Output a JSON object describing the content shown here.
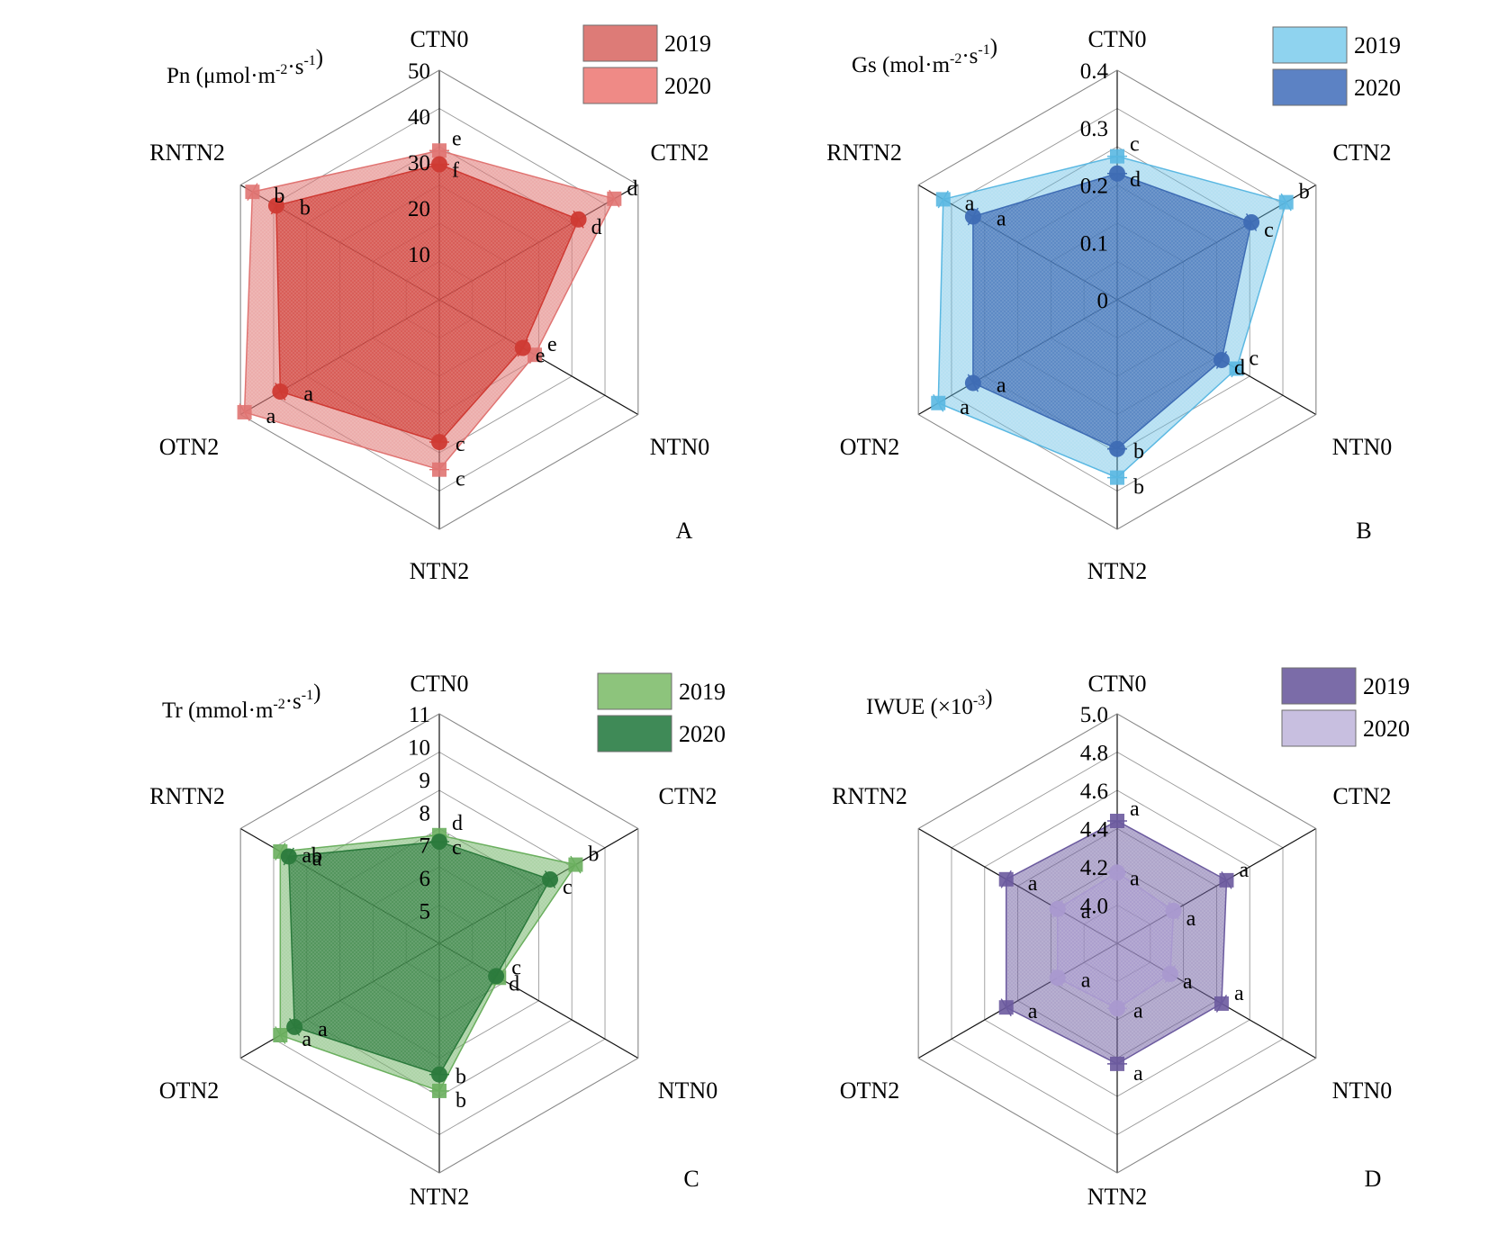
{
  "chart_data": [
    {
      "type": "radar",
      "panel_letter": "A",
      "ylabel_main": "Pn (μmol·m",
      "ylabel_sup1": "-2",
      "ylabel_mid": "·s",
      "ylabel_sup2": "-1",
      "ylabel_end": ")",
      "categories": [
        "CTN0",
        "CTN2",
        "NTN0",
        "NTN2",
        "OTN2",
        "RNTN2"
      ],
      "rlim": [
        0,
        50
      ],
      "ticks": [
        "10",
        "20",
        "30",
        "40",
        "50"
      ],
      "tick_values": [
        10,
        20,
        30,
        40,
        50
      ],
      "legend": [
        "2019",
        "2020"
      ],
      "series": [
        {
          "name": "2019",
          "values": [
            32.5,
            44,
            24,
            37,
            49,
            47
          ],
          "marker": "square",
          "color": "#e07472",
          "fill_opacity": 0.6,
          "labels": [
            "e",
            "d",
            "e",
            "c",
            "a",
            "b"
          ]
        },
        {
          "name": "2020",
          "values": [
            29.5,
            35,
            21,
            31,
            40,
            41
          ],
          "marker": "circle",
          "color": "#cf3a33",
          "fill_opacity": 0.7,
          "labels": [
            "f",
            "d",
            "e",
            "c",
            "a",
            "b"
          ]
        }
      ],
      "legend_colors": [
        "#dd7b77",
        "#ef8a86"
      ]
    },
    {
      "type": "radar",
      "panel_letter": "B",
      "ylabel_main": "Gs (mol·m",
      "ylabel_sup1": "-2",
      "ylabel_mid": "·s",
      "ylabel_sup2": "-1",
      "ylabel_end": ")",
      "categories": [
        "CTN0",
        "CTN2",
        "NTN0",
        "NTN2",
        "OTN2",
        "RNTN2"
      ],
      "rlim": [
        0,
        0.4
      ],
      "ticks": [
        "0",
        "0.1",
        "0.2",
        "0.3",
        "0.4"
      ],
      "tick_values": [
        0,
        0.1,
        0.2,
        0.3,
        0.4
      ],
      "legend": [
        "2019",
        "2020"
      ],
      "series": [
        {
          "name": "2019",
          "values": [
            0.25,
            0.34,
            0.24,
            0.31,
            0.36,
            0.35
          ],
          "marker": "square",
          "color": "#5ab8e2",
          "fill_opacity": 0.45,
          "labels": [
            "c",
            "b",
            "c",
            "b",
            "a",
            "a"
          ]
        },
        {
          "name": "2020",
          "values": [
            0.22,
            0.27,
            0.21,
            0.26,
            0.29,
            0.29
          ],
          "marker": "circle",
          "color": "#3e6cb4",
          "fill_opacity": 0.75,
          "labels": [
            "d",
            "c",
            "d",
            "b",
            "a",
            "a"
          ]
        }
      ],
      "legend_colors": [
        "#8fd3ef",
        "#5c82c4"
      ]
    },
    {
      "type": "radar",
      "panel_letter": "C",
      "ylabel_main": "Tr (mmol·m",
      "ylabel_sup1": "-2",
      "ylabel_mid": "·s",
      "ylabel_sup2": "-1",
      "ylabel_end": ")",
      "categories": [
        "CTN0",
        "CTN2",
        "NTN0",
        "NTN2",
        "OTN2",
        "RNTN2"
      ],
      "rlim": [
        4,
        11
      ],
      "ticks": [
        "5",
        "6",
        "7",
        "8",
        "9",
        "10",
        "11"
      ],
      "tick_values": [
        5,
        6,
        7,
        8,
        9,
        10,
        11
      ],
      "legend": [
        "2019",
        "2020"
      ],
      "series": [
        {
          "name": "2019",
          "values": [
            7.3,
            8.8,
            6.1,
            8.5,
            9.6,
            9.6
          ],
          "marker": "square",
          "color": "#6aaf5e",
          "fill_opacity": 0.55,
          "labels": [
            "d",
            "b",
            "c",
            "b",
            "a",
            "ab"
          ]
        },
        {
          "name": "2020",
          "values": [
            7.1,
            7.9,
            6.0,
            8.0,
            9.1,
            9.3
          ],
          "marker": "circle",
          "color": "#2b7a3c",
          "fill_opacity": 0.7,
          "labels": [
            "c",
            "c",
            "d",
            "b",
            "a",
            "a"
          ]
        }
      ],
      "legend_colors": [
        "#8dc47c",
        "#3f8a57"
      ]
    },
    {
      "type": "radar",
      "panel_letter": "D",
      "ylabel_main": "IWUE (×10",
      "ylabel_sup1": "-3",
      "ylabel_mid": "",
      "ylabel_sup2": "",
      "ylabel_end": ")",
      "categories": [
        "CTN0",
        "CTN2",
        "NTN0",
        "NTN2",
        "OTN2",
        "RNTN2"
      ],
      "rlim": [
        3.8,
        5.0
      ],
      "ticks": [
        "4.0",
        "4.2",
        "4.4",
        "4.6",
        "4.8",
        "5.0"
      ],
      "tick_values": [
        4.0,
        4.2,
        4.4,
        4.6,
        4.8,
        5.0
      ],
      "legend": [
        "2019",
        "2020"
      ],
      "series": [
        {
          "name": "2019",
          "values": [
            4.44,
            4.46,
            4.43,
            4.43,
            4.47,
            4.47
          ],
          "marker": "square",
          "color": "#6b5a9e",
          "fill_opacity": 0.55,
          "labels": [
            "a",
            "a",
            "a",
            "a",
            "a",
            "a"
          ]
        },
        {
          "name": "2020",
          "values": [
            4.17,
            4.14,
            4.12,
            4.14,
            4.16,
            4.16
          ],
          "marker": "circle",
          "color": "#a999cf",
          "fill_opacity": 0.55,
          "labels": [
            "a",
            "a",
            "a",
            "a",
            "a",
            "a"
          ]
        }
      ],
      "legend_colors": [
        "#7b6ca8",
        "#c8bfe0"
      ]
    }
  ]
}
